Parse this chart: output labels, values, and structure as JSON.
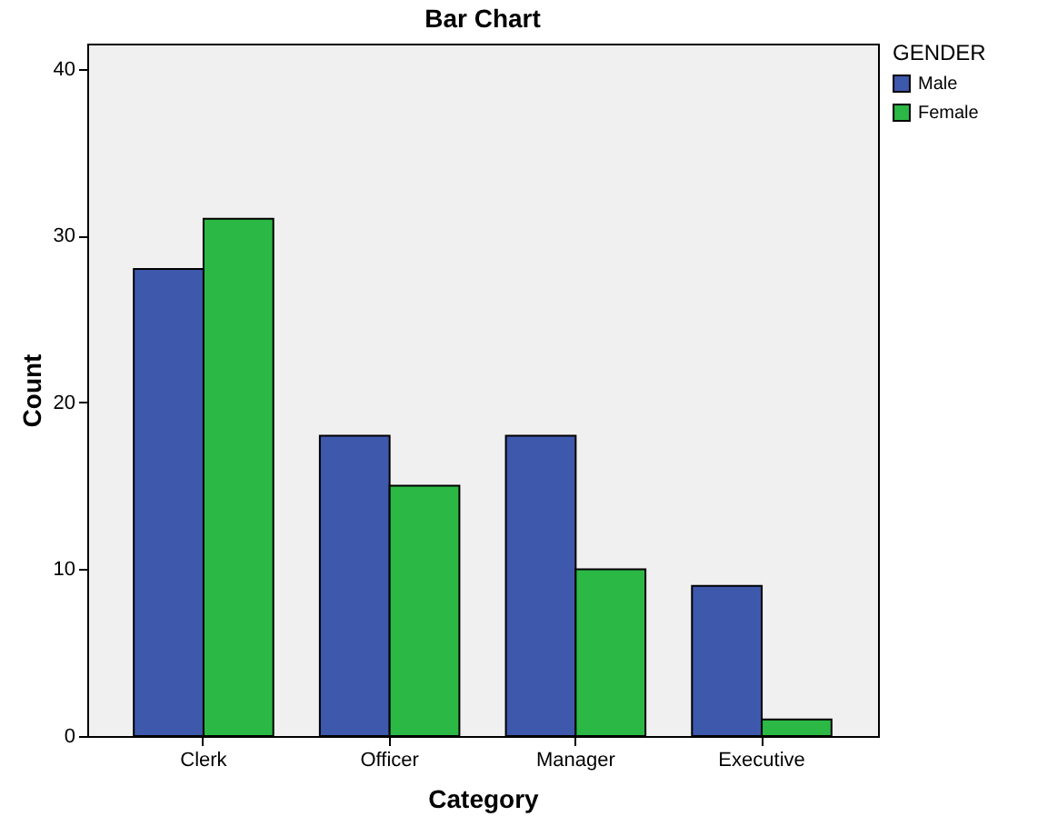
{
  "chart_data": {
    "type": "bar",
    "title": "Bar Chart",
    "xlabel": "Category",
    "ylabel": "Count",
    "legend_title": "GENDER",
    "categories": [
      "Clerk",
      "Officer",
      "Manager",
      "Executive"
    ],
    "series": [
      {
        "name": "Male",
        "color": "#3e58ac",
        "values": [
          28,
          18,
          18,
          9
        ]
      },
      {
        "name": "Female",
        "color": "#2cb845",
        "values": [
          31,
          15,
          10,
          1
        ]
      }
    ],
    "ylim": [
      0,
      41.5
    ],
    "yticks": [
      0,
      10,
      20,
      30,
      40
    ],
    "grid": false,
    "legend": "top right"
  }
}
